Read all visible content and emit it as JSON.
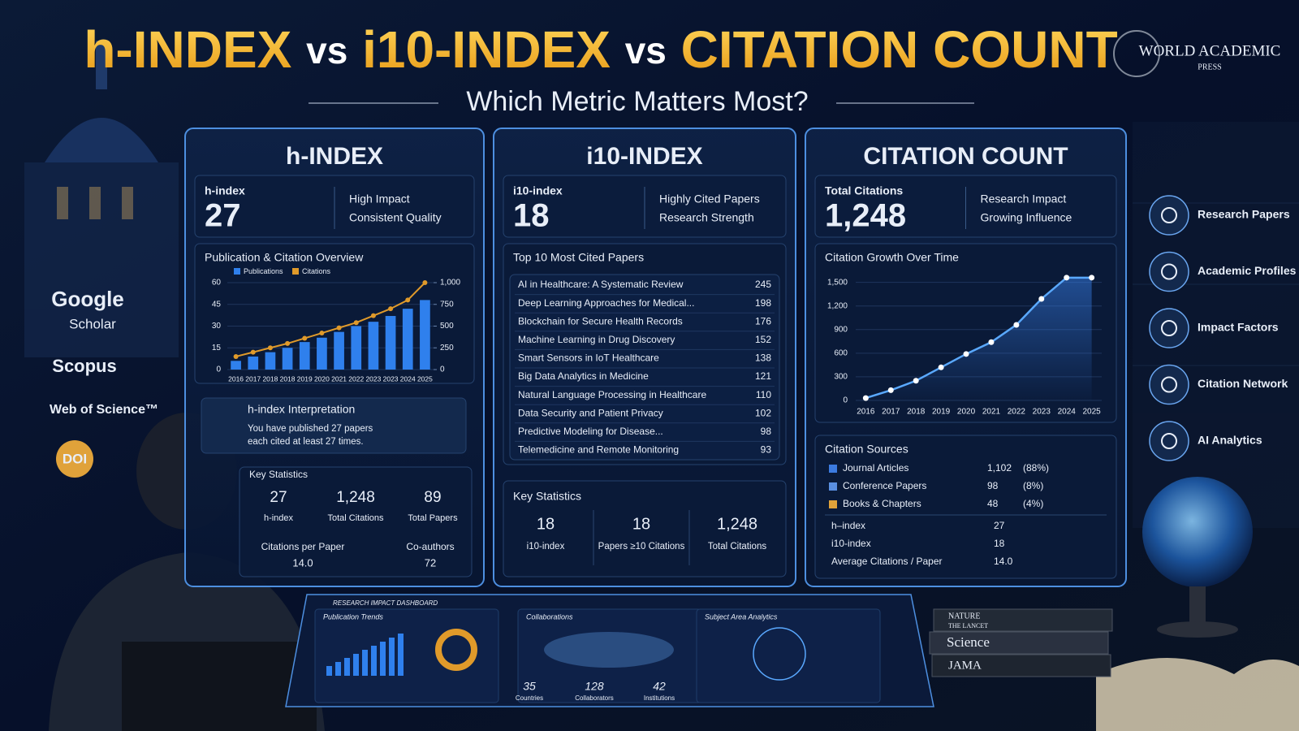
{
  "header": {
    "title": [
      "h-INDEX",
      "vs",
      "i10-INDEX",
      "vs",
      "CITATION COUNT"
    ],
    "subtitle": "Which Metric Matters Most?",
    "brand": "WORLD ACADEMIC",
    "brand_sub": "PRESS"
  },
  "sources": [
    "Google",
    "Scholar",
    "Scopus",
    "Web of Science™",
    "DOI"
  ],
  "h_index": {
    "title": "h-INDEX",
    "metric_label": "h-index",
    "metric_value": "27",
    "notes": [
      "High Impact",
      "Consistent Quality"
    ],
    "chart": {
      "type": "bar",
      "title": "Publication & Citation Overview",
      "categories": [
        "2016",
        "2017",
        "2018",
        "2018",
        "2019",
        "2020",
        "2021",
        "2022",
        "2023",
        "2023",
        "2024",
        "2025"
      ],
      "series": [
        {
          "name": "Publications",
          "color": "#2f80ed",
          "values": [
            6,
            9,
            12,
            15,
            19,
            22,
            26,
            30,
            33,
            37,
            42,
            48
          ]
        },
        {
          "name": "Citations",
          "color": "#e09a2a",
          "axis": "y2",
          "values": [
            150,
            200,
            250,
            300,
            360,
            420,
            480,
            540,
            620,
            700,
            800,
            1000
          ]
        }
      ],
      "ylim": [
        0,
        60
      ],
      "yticks": [
        0,
        15,
        30,
        45,
        60
      ],
      "y2lim": [
        0,
        1000
      ],
      "y2ticks": [
        0,
        250,
        500,
        750,
        {
          "value": 1000,
          "label": "1,000"
        }
      ]
    },
    "interpretation": {
      "title": "h-index Interpretation",
      "lines": [
        "You have published 27 papers",
        "each cited at least 27 times."
      ]
    },
    "key_statistics": {
      "title": "Key Statistics",
      "items": [
        {
          "value": "27",
          "label": "h-index"
        },
        {
          "value": "1,248",
          "label": "Total Citations"
        },
        {
          "value": "89",
          "label": "Total Papers"
        }
      ],
      "extra": [
        {
          "label": "Citations per Paper",
          "value": "14.0"
        },
        {
          "label": "Co-authors",
          "value": "72"
        }
      ]
    }
  },
  "i10_index": {
    "title": "i10-INDEX",
    "metric_label": "i10-index",
    "metric_value": "18",
    "notes": [
      "Highly Cited Papers",
      "Research Strength"
    ],
    "top_papers": {
      "title": "Top 10 Most Cited Papers",
      "rows": [
        [
          "AI in Healthcare: A Systematic Review",
          245
        ],
        [
          "Deep Learning Approaches for Medical...",
          198
        ],
        [
          "Blockchain for Secure Health Records",
          176
        ],
        [
          "Machine Learning in Drug Discovery",
          152
        ],
        [
          "Smart Sensors in IoT Healthcare",
          138
        ],
        [
          "Big Data Analytics in Medicine",
          121
        ],
        [
          "Natural Language Processing in Healthcare",
          110
        ],
        [
          "Data Security and Patient Privacy",
          102
        ],
        [
          "Predictive Modeling for Disease...",
          98
        ],
        [
          "Telemedicine and Remote Monitoring",
          93
        ]
      ]
    },
    "key_statistics": {
      "title": "Key Statistics",
      "items": [
        {
          "value": "18",
          "label": "i10-index"
        },
        {
          "value": "18",
          "label": "Papers ≥10 Citations"
        },
        {
          "value": "1,248",
          "label": "Total Citations"
        }
      ]
    }
  },
  "citation_count": {
    "title": "CITATION COUNT",
    "metric_label": "Total Citations",
    "metric_value": "1,248",
    "notes": [
      "Research Impact",
      "Growing Influence"
    ],
    "chart": {
      "type": "line",
      "title": "Citation Growth Over Time",
      "x": [
        2016,
        2017,
        2018,
        2019,
        2020,
        2021,
        2022,
        2023,
        2024,
        2025
      ],
      "values": [
        30,
        130,
        250,
        420,
        590,
        740,
        960,
        1290,
        1560,
        1560
      ],
      "color": "#5aa9ff",
      "xlim": [
        2015.6,
        2025.4
      ],
      "ylim": [
        0,
        1620
      ],
      "yticks": [
        0,
        300,
        600,
        900,
        {
          "value": 1200,
          "label": "1,200"
        },
        {
          "value": 1500,
          "label": "1,500"
        }
      ]
    },
    "sources": {
      "title": "Citation Sources",
      "rows": [
        {
          "name": "Journal Articles",
          "value": "1,102",
          "share": "(88%)"
        },
        {
          "name": "Conference Papers",
          "value": "98",
          "share": "(8%)"
        },
        {
          "name": "Books & Chapters",
          "value": "48",
          "share": "(4%)"
        }
      ]
    },
    "summary": [
      {
        "label": "h–index",
        "value": "27"
      },
      {
        "label": "i10-index",
        "value": "18"
      },
      {
        "label": "Average Citations / Paper",
        "value": "14.0"
      }
    ]
  },
  "sidebar": [
    "Research Papers",
    "Academic Profiles",
    "Impact Factors",
    "Citation Network",
    "AI Analytics"
  ],
  "dashboard": {
    "title": "RESEARCH IMPACT DASHBOARD",
    "sections": [
      "Publication Trends",
      "Collaborations",
      "Subject Area Analytics"
    ],
    "stats": [
      {
        "value": "35",
        "label": "Countries"
      },
      {
        "value": "128",
        "label": "Collaborators"
      },
      {
        "value": "42",
        "label": "Institutions"
      }
    ]
  },
  "books": [
    "NATURE",
    "THE LANCET",
    "Science",
    "JAMA"
  ]
}
